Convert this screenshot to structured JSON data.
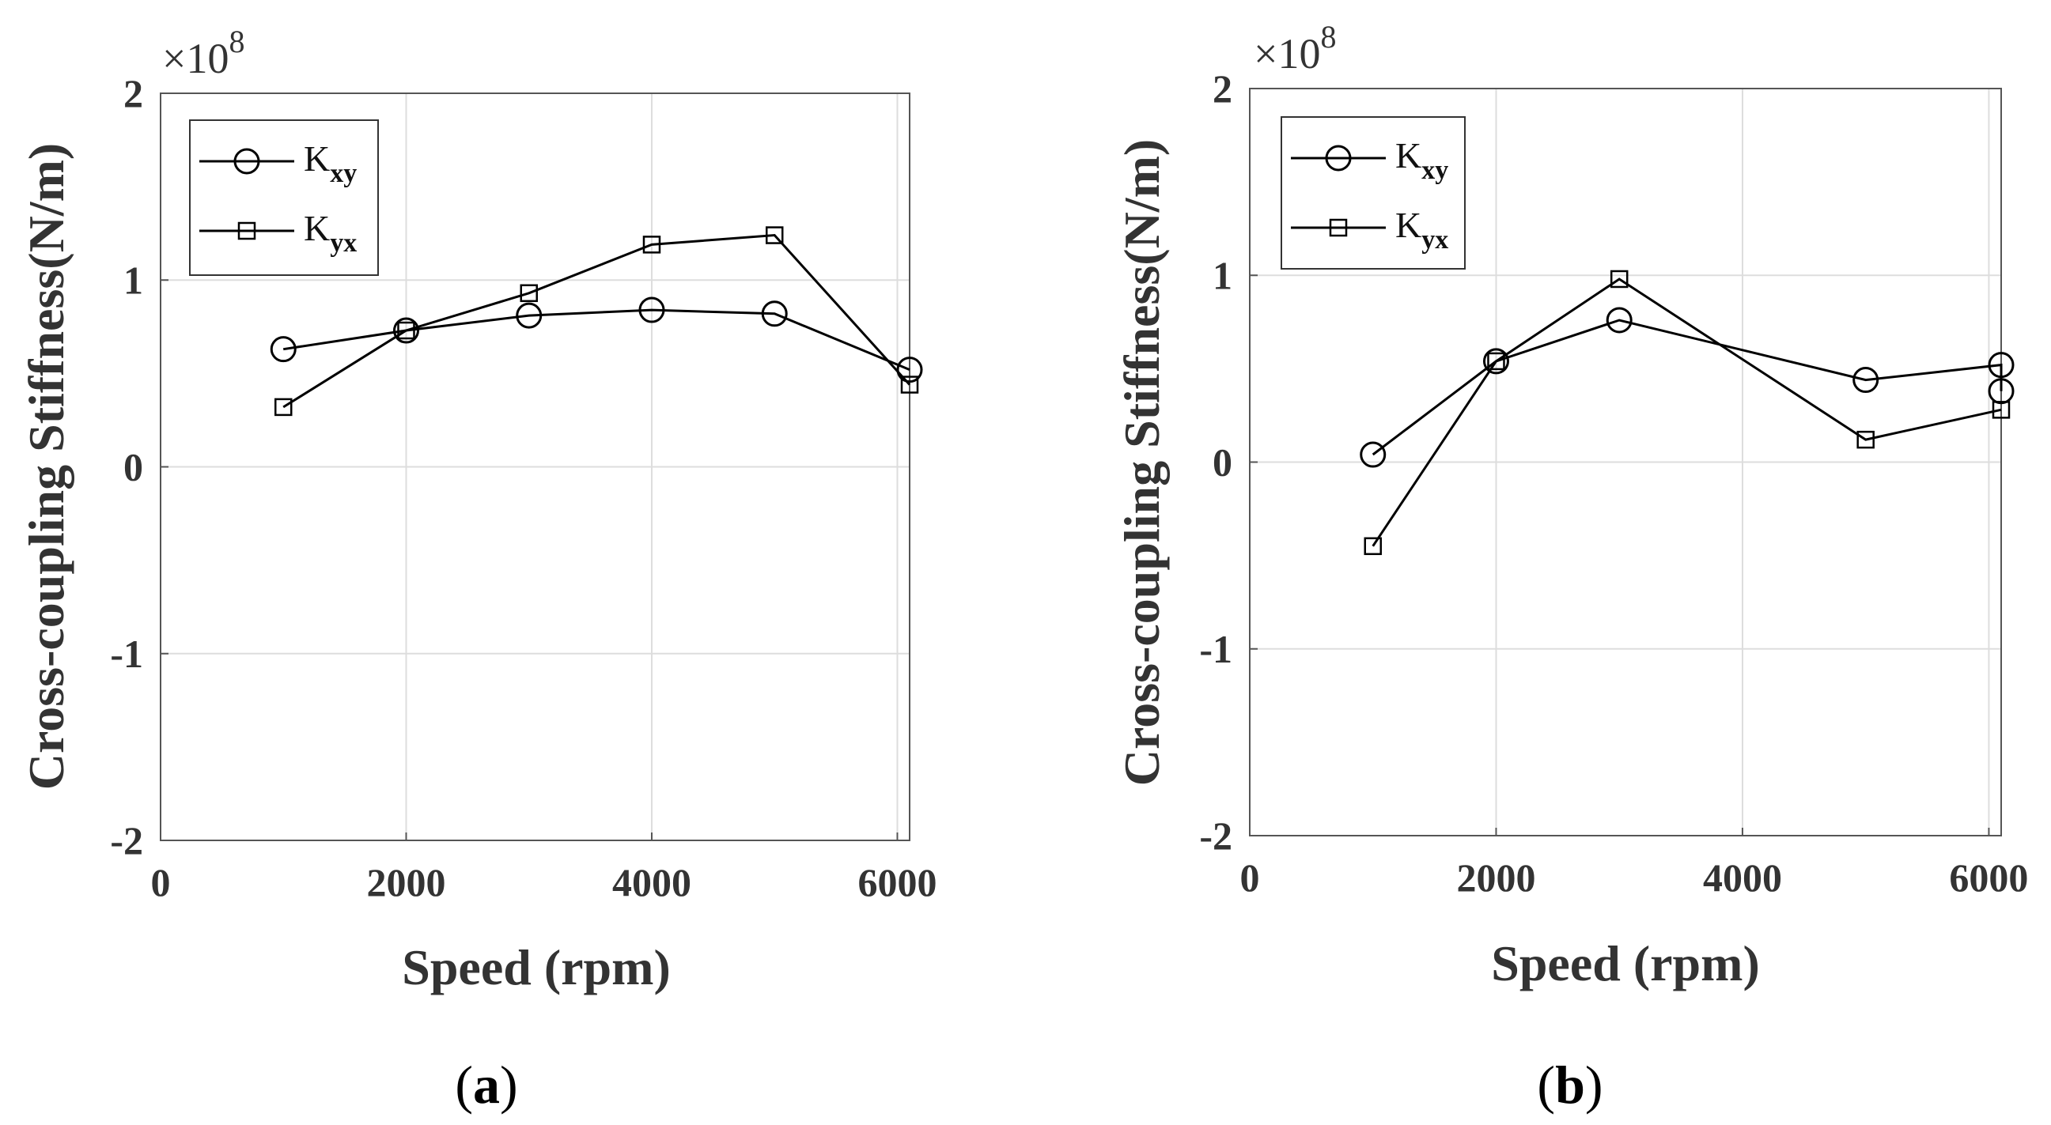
{
  "chart_data": [
    {
      "type": "line",
      "panel_label": "a",
      "xlabel": "Speed (rpm)",
      "ylabel": "Cross-coupling Stiffness(N/m)",
      "y_exponent_base": "×10",
      "y_exponent_power": "8",
      "xlim": [
        0,
        6100
      ],
      "ylim": [
        -2,
        2
      ],
      "xticks": [
        0,
        2000,
        4000,
        6000
      ],
      "yticks": [
        -2,
        -1,
        0,
        1,
        2
      ],
      "grid": true,
      "legend_position": "top-left",
      "series": [
        {
          "name": "K",
          "sub": "xy",
          "marker": "circle",
          "x": [
            1000,
            2000,
            3000,
            4000,
            5000,
            6100
          ],
          "y": [
            0.63,
            0.73,
            0.81,
            0.84,
            0.82,
            0.52
          ]
        },
        {
          "name": "K",
          "sub": "yx",
          "marker": "square",
          "x": [
            1000,
            2000,
            3000,
            4000,
            5000,
            6100
          ],
          "y": [
            0.32,
            0.73,
            0.93,
            1.19,
            1.24,
            0.44
          ]
        }
      ]
    },
    {
      "type": "line",
      "panel_label": "b",
      "xlabel": "Speed (rpm)",
      "ylabel": "Cross-coupling Stiffness(N/m)",
      "y_exponent_base": "×10",
      "y_exponent_power": "8",
      "xlim": [
        0,
        6100
      ],
      "ylim": [
        -2,
        2
      ],
      "xticks": [
        0,
        2000,
        4000,
        6000
      ],
      "yticks": [
        -2,
        -1,
        0,
        1,
        2
      ],
      "grid": true,
      "legend_position": "top-left",
      "series": [
        {
          "name": "K",
          "sub": "xy",
          "marker": "circle",
          "x": [
            1000,
            2000,
            3000,
            5000,
            6100,
            6100
          ],
          "y": [
            0.04,
            0.54,
            0.76,
            0.44,
            0.52,
            0.38
          ]
        },
        {
          "name": "K",
          "sub": "yx",
          "marker": "square",
          "x": [
            1000,
            2000,
            3000,
            5000,
            6100
          ],
          "y": [
            -0.45,
            0.54,
            0.98,
            0.12,
            0.28
          ]
        }
      ]
    }
  ]
}
